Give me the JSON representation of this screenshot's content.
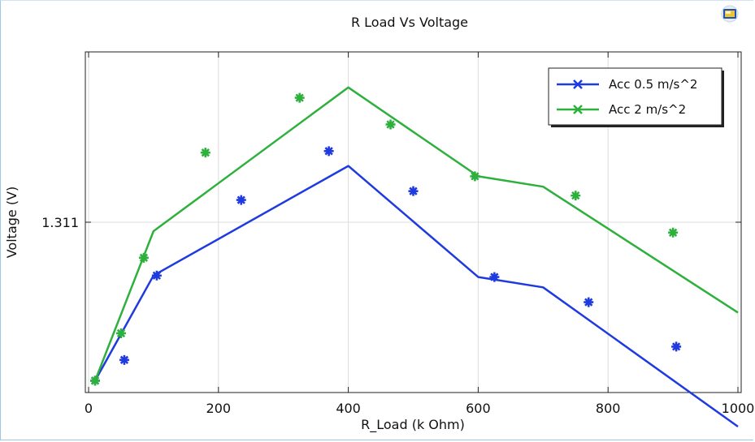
{
  "chart_data": {
    "type": "line",
    "title": "R Load Vs Voltage",
    "xlabel": "R_Load (k Ohm)",
    "ylabel": "Voltage (V)",
    "xlim": [
      -5,
      1005
    ],
    "ylim": [
      1.2855,
      1.3085
    ],
    "x_ticks": [
      0,
      200,
      400,
      600,
      800,
      1000
    ],
    "y_ticks": [
      1.311
    ],
    "y_tick_labels": [
      "1.311"
    ],
    "grid": true,
    "legend_position": "top-right",
    "series": [
      {
        "name": "Acc 0.5 m/s^2",
        "color": "#1f3be0",
        "x": [
          10,
          100,
          400,
          600,
          700,
          1000
        ],
        "y": [
          1.2863,
          1.2934,
          1.3008,
          1.2933,
          1.2926,
          1.2832
        ],
        "markers_x": [
          10,
          55,
          105,
          235,
          370,
          500,
          625,
          770,
          905
        ],
        "markers_y": [
          1.2863,
          1.2877,
          1.2934,
          1.2985,
          1.3018,
          1.2991,
          1.2933,
          1.2916,
          1.2886
        ]
      },
      {
        "name": "Acc 2 m/s^2",
        "color": "#2eb03c",
        "x": [
          10,
          100,
          400,
          600,
          700,
          1000
        ],
        "y": [
          1.2863,
          1.2964,
          1.3061,
          1.3001,
          1.2994,
          1.2909
        ],
        "markers_x": [
          10,
          50,
          85,
          180,
          325,
          465,
          595,
          750,
          900
        ],
        "markers_y": [
          1.2863,
          1.2895,
          1.2946,
          1.3017,
          1.3054,
          1.3036,
          1.3001,
          1.2988,
          1.2963
        ]
      }
    ]
  },
  "toolbar": {
    "logo_icon": "app-logo-icon"
  }
}
